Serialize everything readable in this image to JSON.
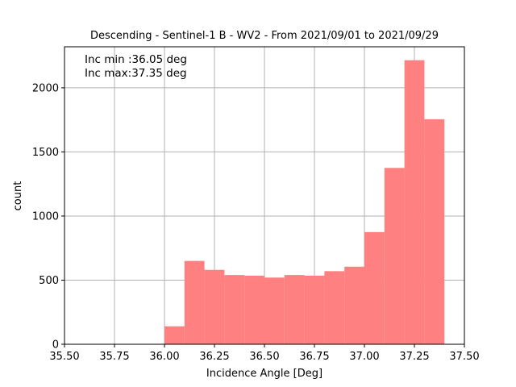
{
  "chart_data": {
    "type": "bar",
    "title": "Descending - Sentinel-1 B - WV2 - From 2021/09/01 to 2021/09/29",
    "xlabel": "Incidence Angle [Deg]",
    "ylabel": "count",
    "xlim": [
      35.5,
      37.5
    ],
    "ylim": [
      0,
      2320
    ],
    "xticks": [
      35.5,
      35.75,
      36.0,
      36.25,
      36.5,
      36.75,
      37.0,
      37.25,
      37.5
    ],
    "xtick_labels": [
      "35.50",
      "35.75",
      "36.00",
      "36.25",
      "36.50",
      "36.75",
      "37.00",
      "37.25",
      "37.50"
    ],
    "yticks": [
      0,
      500,
      1000,
      1500,
      2000
    ],
    "ytick_labels": [
      "0",
      "500",
      "1000",
      "1500",
      "2000"
    ],
    "grid": true,
    "bar_color": "#ff8080",
    "bins": [
      {
        "x0": 36.0,
        "x1": 36.1,
        "value": 140
      },
      {
        "x0": 36.1,
        "x1": 36.2,
        "value": 650
      },
      {
        "x0": 36.2,
        "x1": 36.3,
        "value": 580
      },
      {
        "x0": 36.3,
        "x1": 36.4,
        "value": 540
      },
      {
        "x0": 36.4,
        "x1": 36.5,
        "value": 535
      },
      {
        "x0": 36.5,
        "x1": 36.6,
        "value": 520
      },
      {
        "x0": 36.6,
        "x1": 36.7,
        "value": 540
      },
      {
        "x0": 36.7,
        "x1": 36.8,
        "value": 535
      },
      {
        "x0": 36.8,
        "x1": 36.9,
        "value": 570
      },
      {
        "x0": 36.9,
        "x1": 37.0,
        "value": 605
      },
      {
        "x0": 37.0,
        "x1": 37.1,
        "value": 875
      },
      {
        "x0": 37.1,
        "x1": 37.2,
        "value": 1375
      },
      {
        "x0": 37.2,
        "x1": 37.3,
        "value": 2215
      },
      {
        "x0": 37.3,
        "x1": 37.4,
        "value": 1755
      }
    ],
    "annotations": [
      "Inc min :36.05 deg",
      "Inc max:37.35 deg"
    ]
  }
}
